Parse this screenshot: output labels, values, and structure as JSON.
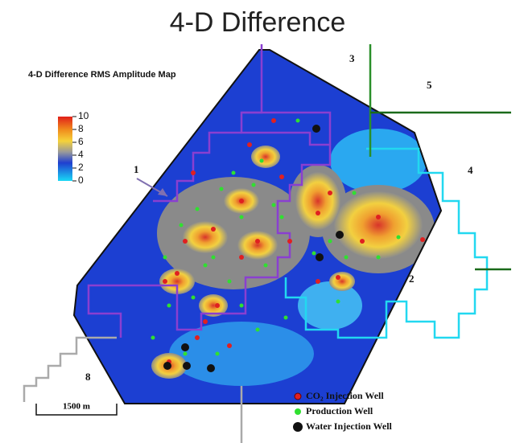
{
  "title": "4-D Difference",
  "map_title": "4-D Difference RMS Amplitude Map",
  "colorbar": {
    "ticks": [
      10,
      8,
      6,
      4,
      2,
      0
    ]
  },
  "regions": [
    "1",
    "2",
    "3",
    "4",
    "5",
    "8"
  ],
  "scale_bar": "1500 m",
  "legend": [
    "CO₂ Injection Well",
    "Production Well",
    "Water Injection Well"
  ]
}
